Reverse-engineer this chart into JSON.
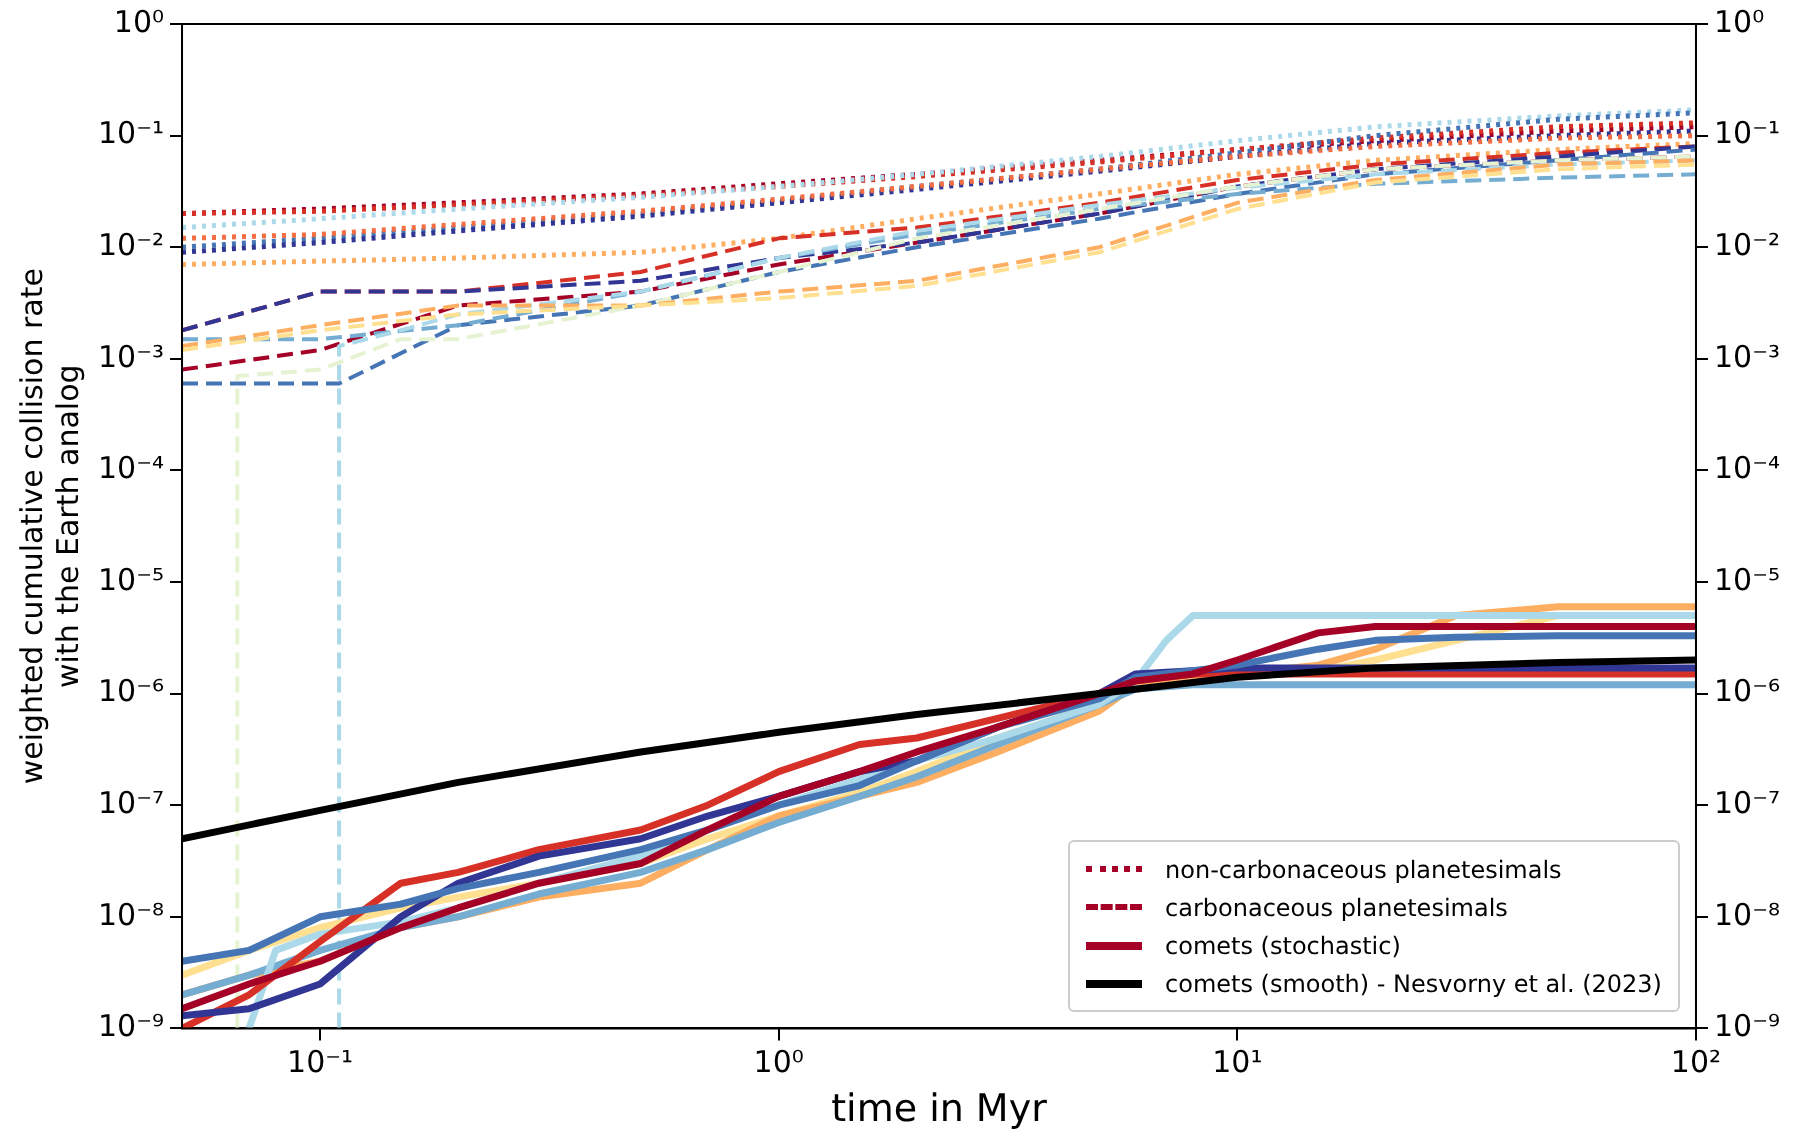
{
  "chart_data": {
    "type": "line",
    "xlabel": "time in Myr",
    "ylabel": "weighted cumulative collision rate\nwith the Earth analog",
    "log": "xy",
    "grid": false,
    "legend": "bottom right",
    "marker": "none",
    "xlim": [
      0.05,
      100
    ],
    "xticks": [
      {
        "value": 0.1,
        "label": "10⁻¹"
      },
      {
        "value": 1,
        "label": "10⁰"
      },
      {
        "value": 10,
        "label": "10¹"
      },
      {
        "value": 100,
        "label": "10²"
      }
    ],
    "ylim": [
      1e-09,
      1
    ],
    "yticks": [
      {
        "value": 1e-09,
        "label": "10⁻⁹"
      },
      {
        "value": 1e-08,
        "label": "10⁻⁸"
      },
      {
        "value": 1e-07,
        "label": "10⁻⁷"
      },
      {
        "value": 1e-06,
        "label": "10⁻⁶"
      },
      {
        "value": 1e-05,
        "label": "10⁻⁵"
      },
      {
        "value": 0.0001,
        "label": "10⁻⁴"
      },
      {
        "value": 0.001,
        "label": "10⁻³"
      },
      {
        "value": 0.01,
        "label": "10⁻²"
      },
      {
        "value": 0.1,
        "label": "10⁻¹"
      },
      {
        "value": 1,
        "label": "10⁰"
      }
    ],
    "series": [
      {
        "name": "non-carbonaceous planetesimals",
        "color": "#a50026",
        "line_style": "dotted",
        "x": [
          0.05,
          0.1,
          0.2,
          0.5,
          1,
          2,
          5,
          10,
          20,
          50,
          100
        ],
        "values": [
          0.02,
          0.022,
          0.025,
          0.03,
          0.037,
          0.045,
          0.06,
          0.075,
          0.09,
          0.11,
          0.12
        ]
      },
      {
        "color": "#d73027",
        "line_style": "dotted",
        "x": [
          0.05,
          0.1,
          0.2,
          0.5,
          1,
          2,
          5,
          10,
          20,
          50,
          100
        ],
        "values": [
          0.02,
          0.021,
          0.024,
          0.029,
          0.035,
          0.043,
          0.058,
          0.075,
          0.095,
          0.12,
          0.13
        ]
      },
      {
        "color": "#abd9e9",
        "line_style": "dotted",
        "x": [
          0.05,
          0.1,
          0.2,
          0.5,
          1,
          2,
          5,
          10,
          20,
          50,
          100
        ],
        "values": [
          0.015,
          0.018,
          0.022,
          0.028,
          0.035,
          0.045,
          0.065,
          0.09,
          0.12,
          0.15,
          0.17
        ]
      },
      {
        "color": "#4575b4",
        "line_style": "dotted",
        "x": [
          0.05,
          0.1,
          0.2,
          0.5,
          1,
          2,
          5,
          10,
          20,
          50,
          100
        ],
        "values": [
          0.01,
          0.012,
          0.015,
          0.02,
          0.026,
          0.035,
          0.05,
          0.07,
          0.1,
          0.14,
          0.16
        ]
      },
      {
        "color": "#313695",
        "line_style": "dotted",
        "x": [
          0.05,
          0.1,
          0.2,
          0.5,
          1,
          2,
          5,
          10,
          20,
          50,
          100
        ],
        "values": [
          0.009,
          0.011,
          0.014,
          0.019,
          0.025,
          0.033,
          0.048,
          0.065,
          0.085,
          0.1,
          0.11
        ]
      },
      {
        "color": "#f46d43",
        "line_style": "dotted",
        "x": [
          0.05,
          0.1,
          0.2,
          0.5,
          1,
          2,
          5,
          10,
          20,
          50,
          100
        ],
        "values": [
          0.012,
          0.013,
          0.016,
          0.021,
          0.027,
          0.035,
          0.05,
          0.065,
          0.08,
          0.095,
          0.1
        ]
      },
      {
        "color": "#fdae61",
        "line_style": "dotted",
        "x": [
          0.05,
          0.1,
          0.2,
          0.5,
          1,
          2,
          5,
          10,
          20,
          50,
          100
        ],
        "values": [
          0.007,
          0.0075,
          0.008,
          0.009,
          0.012,
          0.018,
          0.03,
          0.045,
          0.06,
          0.075,
          0.085
        ]
      },
      {
        "name": "carbonaceous planetesimals",
        "color": "#a50026",
        "line_style": "dashed",
        "x": [
          0.05,
          0.1,
          0.2,
          0.5,
          1,
          2,
          5,
          10,
          20,
          50,
          100
        ],
        "values": [
          0.0008,
          0.0012,
          0.003,
          0.004,
          0.007,
          0.011,
          0.02,
          0.035,
          0.05,
          0.06,
          0.065
        ]
      },
      {
        "color": "#d73027",
        "line_style": "dashed",
        "x": [
          0.05,
          0.1,
          0.2,
          0.5,
          1,
          2,
          5,
          10,
          20,
          50,
          100
        ],
        "values": [
          0.0018,
          0.004,
          0.004,
          0.006,
          0.012,
          0.015,
          0.025,
          0.04,
          0.055,
          0.07,
          0.08
        ]
      },
      {
        "color": "#313695",
        "line_style": "dashed",
        "x": [
          0.05,
          0.1,
          0.2,
          0.5,
          1,
          2,
          5,
          10,
          20,
          50,
          100
        ],
        "values": [
          0.0018,
          0.004,
          0.004,
          0.005,
          0.008,
          0.011,
          0.02,
          0.035,
          0.05,
          0.065,
          0.08
        ]
      },
      {
        "color": "#4575b4",
        "line_style": "dashed",
        "x": [
          0.05,
          0.1,
          0.11,
          0.2,
          0.5,
          1,
          2,
          5,
          10,
          20,
          50,
          100
        ],
        "values": [
          0.0006,
          0.0006,
          0.0006,
          0.002,
          0.003,
          0.006,
          0.01,
          0.018,
          0.03,
          0.045,
          0.06,
          0.075
        ]
      },
      {
        "color": "#74add1",
        "line_style": "dashed",
        "x": [
          0.05,
          0.1,
          0.2,
          0.5,
          1,
          2,
          5,
          10,
          20,
          50,
          100
        ],
        "values": [
          0.0015,
          0.0015,
          0.002,
          0.004,
          0.008,
          0.013,
          0.022,
          0.03,
          0.037,
          0.042,
          0.045
        ]
      },
      {
        "color": "#abd9e9",
        "line_style": "dashed",
        "x": [
          0.11,
          0.11,
          0.15,
          0.2,
          0.5,
          1,
          2,
          5,
          10,
          20,
          50,
          100
        ],
        "values": [
          1e-09,
          0.0013,
          0.0018,
          0.0025,
          0.004,
          0.008,
          0.014,
          0.024,
          0.034,
          0.045,
          0.055,
          0.06
        ]
      },
      {
        "color": "#e6f3d2",
        "line_style": "dashed",
        "x": [
          0.066,
          0.066,
          0.1,
          0.15,
          0.2,
          0.5,
          1,
          2,
          5,
          10,
          20,
          50,
          100
        ],
        "values": [
          1e-09,
          0.0007,
          0.0008,
          0.0015,
          0.0015,
          0.003,
          0.006,
          0.012,
          0.022,
          0.035,
          0.05,
          0.06,
          0.065
        ]
      },
      {
        "color": "#fdae61",
        "line_style": "dashed",
        "x": [
          0.05,
          0.1,
          0.2,
          0.5,
          1,
          2,
          5,
          10,
          20,
          50,
          100
        ],
        "values": [
          0.0013,
          0.002,
          0.003,
          0.003,
          0.004,
          0.005,
          0.01,
          0.025,
          0.04,
          0.055,
          0.06
        ]
      },
      {
        "color": "#fee090",
        "line_style": "dashed",
        "x": [
          0.05,
          0.1,
          0.2,
          0.5,
          1,
          2,
          5,
          10,
          20,
          50,
          100
        ],
        "values": [
          0.0012,
          0.0018,
          0.0025,
          0.003,
          0.0035,
          0.0045,
          0.009,
          0.022,
          0.038,
          0.05,
          0.055
        ]
      },
      {
        "color": "#fee090",
        "line_style": "solid",
        "x": [
          0.05,
          0.07,
          0.1,
          0.15,
          0.2,
          0.3,
          0.5,
          0.7,
          1,
          1.5,
          2,
          3,
          5,
          6,
          8,
          10,
          15,
          20,
          30,
          50,
          100
        ],
        "values": [
          3e-09,
          5e-09,
          8e-09,
          1.2e-08,
          1.5e-08,
          2e-08,
          3e-08,
          5e-08,
          8e-08,
          1.3e-07,
          2e-07,
          4e-07,
          8e-07,
          1.3e-06,
          1.5e-06,
          1.5e-06,
          1.6e-06,
          2e-06,
          3e-06,
          5e-06,
          5e-06
        ]
      },
      {
        "color": "#fdae61",
        "line_style": "solid",
        "x": [
          0.05,
          0.07,
          0.1,
          0.15,
          0.2,
          0.3,
          0.5,
          0.7,
          1,
          1.5,
          2,
          3,
          5,
          6,
          8,
          10,
          15,
          20,
          30,
          50,
          100
        ],
        "values": [
          2e-09,
          3e-09,
          4e-09,
          8e-09,
          1e-08,
          1.5e-08,
          2e-08,
          4e-08,
          8e-08,
          1.2e-07,
          1.6e-07,
          3e-07,
          7e-07,
          1.2e-06,
          1.4e-06,
          1.5e-06,
          1.8e-06,
          2.5e-06,
          5e-06,
          6e-06,
          6e-06
        ]
      },
      {
        "color": "#74add1",
        "line_style": "solid",
        "x": [
          0.05,
          0.07,
          0.1,
          0.15,
          0.2,
          0.3,
          0.5,
          0.7,
          1,
          1.5,
          2,
          3,
          5,
          6,
          8,
          10,
          15,
          20,
          30,
          50,
          100
        ],
        "values": [
          2e-09,
          3e-09,
          5e-09,
          8e-09,
          1e-08,
          1.6e-08,
          2.5e-08,
          4e-08,
          7e-08,
          1.2e-07,
          1.8e-07,
          3.5e-07,
          8e-07,
          1.1e-06,
          1.2e-06,
          1.2e-06,
          1.2e-06,
          1.2e-06,
          1.2e-06,
          1.2e-06,
          1.2e-06
        ]
      },
      {
        "color": "#abd9e9",
        "line_style": "solid",
        "x": [
          0.07,
          0.08,
          0.1,
          0.15,
          0.2,
          0.3,
          0.5,
          0.7,
          1,
          2,
          3,
          5,
          6,
          7,
          8,
          100
        ],
        "values": [
          1e-09,
          5e-09,
          7e-09,
          9e-09,
          1.2e-08,
          2e-08,
          3.5e-08,
          6e-08,
          1e-07,
          2.5e-07,
          4e-07,
          8e-07,
          1.3e-06,
          3e-06,
          5e-06,
          5e-06
        ]
      },
      {
        "color": "#d73027",
        "line_style": "solid",
        "x": [
          0.05,
          0.07,
          0.1,
          0.15,
          0.2,
          0.3,
          0.5,
          0.7,
          1,
          1.5,
          2,
          3,
          5,
          6,
          8,
          10,
          15,
          20,
          30,
          50,
          100
        ],
        "values": [
          1e-09,
          2e-09,
          6e-09,
          2e-08,
          2.5e-08,
          4e-08,
          6e-08,
          1e-07,
          2e-07,
          3.5e-07,
          4e-07,
          6e-07,
          1e-06,
          1.3e-06,
          1.5e-06,
          1.5e-06,
          1.5e-06,
          1.5e-06,
          1.5e-06,
          1.5e-06,
          1.5e-06
        ]
      },
      {
        "color": "#313695",
        "line_style": "solid",
        "x": [
          0.05,
          0.07,
          0.1,
          0.15,
          0.2,
          0.3,
          0.5,
          0.7,
          1,
          1.5,
          2,
          3,
          5,
          6,
          8,
          10,
          15,
          20,
          30,
          50,
          100
        ],
        "values": [
          1.3e-09,
          1.5e-09,
          2.5e-09,
          1e-08,
          2e-08,
          3.5e-08,
          5e-08,
          8e-08,
          1.2e-07,
          2e-07,
          2.5e-07,
          5e-07,
          1e-06,
          1.5e-06,
          1.6e-06,
          1.7e-06,
          1.7e-06,
          1.7e-06,
          1.7e-06,
          1.7e-06,
          1.7e-06
        ]
      },
      {
        "color": "#4575b4",
        "line_style": "solid",
        "x": [
          0.05,
          0.07,
          0.1,
          0.15,
          0.2,
          0.3,
          0.5,
          0.7,
          1,
          1.5,
          2,
          3,
          5,
          6,
          8,
          10,
          15,
          20,
          30,
          50,
          100
        ],
        "values": [
          4e-09,
          5e-09,
          1e-08,
          1.3e-08,
          1.8e-08,
          2.5e-08,
          4e-08,
          6e-08,
          1e-07,
          1.5e-07,
          2.5e-07,
          5e-07,
          9e-07,
          1.4e-06,
          1.6e-06,
          1.8e-06,
          2.5e-06,
          3e-06,
          3.2e-06,
          3.3e-06,
          3.3e-06
        ]
      },
      {
        "name": "comets (stochastic)",
        "color": "#a50026",
        "line_style": "solid",
        "x": [
          0.05,
          0.07,
          0.1,
          0.15,
          0.2,
          0.3,
          0.5,
          0.7,
          1,
          1.5,
          2,
          3,
          5,
          6,
          8,
          10,
          15,
          20,
          30,
          50,
          100
        ],
        "values": [
          1.5e-09,
          2.5e-09,
          4e-09,
          8e-09,
          1.2e-08,
          2e-08,
          3e-08,
          6e-08,
          1.2e-07,
          2e-07,
          3e-07,
          5e-07,
          1e-06,
          1.3e-06,
          1.5e-06,
          2e-06,
          3.5e-06,
          4e-06,
          4e-06,
          4e-06,
          4e-06
        ]
      },
      {
        "name": "comets (smooth) - Nesvorny et al. (2023)",
        "color": "#000000",
        "line_style": "solid",
        "x": [
          0.05,
          0.1,
          0.2,
          0.5,
          1,
          2,
          5,
          10,
          20,
          50,
          100
        ],
        "values": [
          5e-08,
          9e-08,
          1.6e-07,
          3e-07,
          4.5e-07,
          6.5e-07,
          1e-06,
          1.4e-06,
          1.7e-06,
          1.9e-06,
          2e-06
        ]
      }
    ]
  }
}
